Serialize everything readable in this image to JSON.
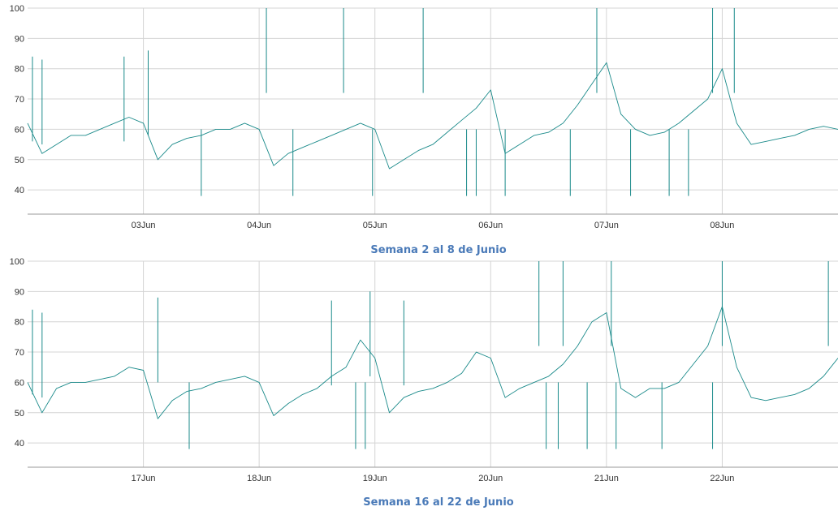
{
  "colors": {
    "series": "#1a8a8a",
    "title": "#4a7ab8",
    "grid": "#d4d4d4"
  },
  "chart_data": [
    {
      "type": "line",
      "title": "Semana 2 al  8 de Junio",
      "xlabel": "",
      "ylabel": "",
      "ylim": [
        32,
        100
      ],
      "x_range": [
        "2024-06-02T00:00",
        "2024-06-09T00:00"
      ],
      "x_ticks": [
        {
          "date": "2024-06-03T00:00",
          "label": "03Jun"
        },
        {
          "date": "2024-06-04T00:00",
          "label": "04Jun"
        },
        {
          "date": "2024-06-05T00:00",
          "label": "05Jun"
        },
        {
          "date": "2024-06-06T00:00",
          "label": "06Jun"
        },
        {
          "date": "2024-06-07T00:00",
          "label": "07Jun"
        },
        {
          "date": "2024-06-08T00:00",
          "label": "08Jun"
        }
      ],
      "y_ticks": [
        40,
        50,
        60,
        70,
        80,
        90,
        100
      ],
      "grid": true,
      "series": [
        {
          "x": [
            "2024-06-02T00:00",
            "2024-06-02T03:00",
            "2024-06-02T06:00",
            "2024-06-02T09:00",
            "2024-06-02T12:00",
            "2024-06-02T15:00",
            "2024-06-02T18:00",
            "2024-06-02T21:00",
            "2024-06-03T00:00",
            "2024-06-03T03:00",
            "2024-06-03T06:00",
            "2024-06-03T09:00",
            "2024-06-03T12:00",
            "2024-06-03T15:00",
            "2024-06-03T18:00",
            "2024-06-03T21:00",
            "2024-06-04T00:00",
            "2024-06-04T03:00",
            "2024-06-04T06:00",
            "2024-06-04T09:00",
            "2024-06-04T12:00",
            "2024-06-04T15:00",
            "2024-06-04T18:00",
            "2024-06-04T21:00",
            "2024-06-05T00:00",
            "2024-06-05T03:00",
            "2024-06-05T06:00",
            "2024-06-05T09:00",
            "2024-06-05T12:00",
            "2024-06-05T15:00",
            "2024-06-05T18:00",
            "2024-06-05T21:00",
            "2024-06-06T00:00",
            "2024-06-06T03:00",
            "2024-06-06T06:00",
            "2024-06-06T09:00",
            "2024-06-06T12:00",
            "2024-06-06T15:00",
            "2024-06-06T18:00",
            "2024-06-06T21:00",
            "2024-06-07T00:00",
            "2024-06-07T03:00",
            "2024-06-07T06:00",
            "2024-06-07T09:00",
            "2024-06-07T12:00",
            "2024-06-07T15:00",
            "2024-06-07T18:00",
            "2024-06-07T21:00",
            "2024-06-08T00:00",
            "2024-06-08T03:00",
            "2024-06-08T06:00",
            "2024-06-08T09:00",
            "2024-06-08T12:00",
            "2024-06-08T15:00",
            "2024-06-08T18:00",
            "2024-06-08T21:00",
            "2024-06-09T00:00"
          ],
          "values": [
            62,
            52,
            55,
            58,
            58,
            60,
            62,
            64,
            62,
            50,
            55,
            57,
            58,
            60,
            60,
            62,
            60,
            48,
            52,
            54,
            56,
            58,
            60,
            62,
            60,
            47,
            50,
            53,
            55,
            59,
            63,
            67,
            73,
            52,
            55,
            58,
            59,
            62,
            68,
            75,
            82,
            65,
            60,
            58,
            59,
            62,
            66,
            70,
            80,
            62,
            55,
            56,
            57,
            58,
            60,
            61,
            60
          ]
        }
      ],
      "spikes": [
        {
          "x": "2024-06-02T01:00",
          "y": 84
        },
        {
          "x": "2024-06-02T03:00",
          "y": 83
        },
        {
          "x": "2024-06-02T20:00",
          "y": 84
        },
        {
          "x": "2024-06-03T01:00",
          "y": 86
        },
        {
          "x": "2024-06-03T12:00",
          "y": 38
        },
        {
          "x": "2024-06-04T01:30",
          "y": 100
        },
        {
          "x": "2024-06-04T07:00",
          "y": 38
        },
        {
          "x": "2024-06-04T17:30",
          "y": 100
        },
        {
          "x": "2024-06-04T23:30",
          "y": 38
        },
        {
          "x": "2024-06-05T10:00",
          "y": 100
        },
        {
          "x": "2024-06-05T19:00",
          "y": 38
        },
        {
          "x": "2024-06-05T21:00",
          "y": 38
        },
        {
          "x": "2024-06-06T03:00",
          "y": 38
        },
        {
          "x": "2024-06-06T16:30",
          "y": 38
        },
        {
          "x": "2024-06-06T22:00",
          "y": 100
        },
        {
          "x": "2024-06-07T05:00",
          "y": 38
        },
        {
          "x": "2024-06-07T13:00",
          "y": 38
        },
        {
          "x": "2024-06-07T17:00",
          "y": 38
        },
        {
          "x": "2024-06-07T22:00",
          "y": 100
        },
        {
          "x": "2024-06-08T02:30",
          "y": 100
        }
      ]
    },
    {
      "type": "line",
      "title": "Semana  16 al 22 de Junio",
      "xlabel": "",
      "ylabel": "",
      "ylim": [
        32,
        100
      ],
      "x_range": [
        "2024-06-16T00:00",
        "2024-06-23T00:00"
      ],
      "x_ticks": [
        {
          "date": "2024-06-17T00:00",
          "label": "17Jun"
        },
        {
          "date": "2024-06-18T00:00",
          "label": "18Jun"
        },
        {
          "date": "2024-06-19T00:00",
          "label": "19Jun"
        },
        {
          "date": "2024-06-20T00:00",
          "label": "20Jun"
        },
        {
          "date": "2024-06-21T00:00",
          "label": "21Jun"
        },
        {
          "date": "2024-06-22T00:00",
          "label": "22Jun"
        }
      ],
      "y_ticks": [
        40,
        50,
        60,
        70,
        80,
        90,
        100
      ],
      "grid": true,
      "series": [
        {
          "x": [
            "2024-06-16T00:00",
            "2024-06-16T03:00",
            "2024-06-16T06:00",
            "2024-06-16T09:00",
            "2024-06-16T12:00",
            "2024-06-16T15:00",
            "2024-06-16T18:00",
            "2024-06-16T21:00",
            "2024-06-17T00:00",
            "2024-06-17T03:00",
            "2024-06-17T06:00",
            "2024-06-17T09:00",
            "2024-06-17T12:00",
            "2024-06-17T15:00",
            "2024-06-17T18:00",
            "2024-06-17T21:00",
            "2024-06-18T00:00",
            "2024-06-18T03:00",
            "2024-06-18T06:00",
            "2024-06-18T09:00",
            "2024-06-18T12:00",
            "2024-06-18T15:00",
            "2024-06-18T18:00",
            "2024-06-18T21:00",
            "2024-06-19T00:00",
            "2024-06-19T03:00",
            "2024-06-19T06:00",
            "2024-06-19T09:00",
            "2024-06-19T12:00",
            "2024-06-19T15:00",
            "2024-06-19T18:00",
            "2024-06-19T21:00",
            "2024-06-20T00:00",
            "2024-06-20T03:00",
            "2024-06-20T06:00",
            "2024-06-20T09:00",
            "2024-06-20T12:00",
            "2024-06-20T15:00",
            "2024-06-20T18:00",
            "2024-06-20T21:00",
            "2024-06-21T00:00",
            "2024-06-21T03:00",
            "2024-06-21T06:00",
            "2024-06-21T09:00",
            "2024-06-21T12:00",
            "2024-06-21T15:00",
            "2024-06-21T18:00",
            "2024-06-21T21:00",
            "2024-06-22T00:00",
            "2024-06-22T03:00",
            "2024-06-22T06:00",
            "2024-06-22T09:00",
            "2024-06-22T12:00",
            "2024-06-22T15:00",
            "2024-06-22T18:00",
            "2024-06-22T21:00",
            "2024-06-23T00:00"
          ],
          "values": [
            60,
            50,
            58,
            60,
            60,
            61,
            62,
            65,
            64,
            48,
            54,
            57,
            58,
            60,
            61,
            62,
            60,
            49,
            53,
            56,
            58,
            62,
            65,
            74,
            68,
            50,
            55,
            57,
            58,
            60,
            63,
            70,
            68,
            55,
            58,
            60,
            62,
            66,
            72,
            80,
            83,
            58,
            55,
            58,
            58,
            60,
            66,
            72,
            85,
            65,
            55,
            54,
            55,
            56,
            58,
            62,
            68
          ]
        }
      ],
      "spikes": [
        {
          "x": "2024-06-16T01:00",
          "y": 84
        },
        {
          "x": "2024-06-16T03:00",
          "y": 83
        },
        {
          "x": "2024-06-17T03:00",
          "y": 88
        },
        {
          "x": "2024-06-17T09:30",
          "y": 38
        },
        {
          "x": "2024-06-18T15:00",
          "y": 87
        },
        {
          "x": "2024-06-18T20:00",
          "y": 38
        },
        {
          "x": "2024-06-18T22:00",
          "y": 38
        },
        {
          "x": "2024-06-18T23:00",
          "y": 90
        },
        {
          "x": "2024-06-19T06:00",
          "y": 87
        },
        {
          "x": "2024-06-20T10:00",
          "y": 100
        },
        {
          "x": "2024-06-20T11:30",
          "y": 38
        },
        {
          "x": "2024-06-20T14:00",
          "y": 38
        },
        {
          "x": "2024-06-20T15:00",
          "y": 100
        },
        {
          "x": "2024-06-20T20:00",
          "y": 38
        },
        {
          "x": "2024-06-21T01:00",
          "y": 100
        },
        {
          "x": "2024-06-21T02:00",
          "y": 38
        },
        {
          "x": "2024-06-21T11:30",
          "y": 38
        },
        {
          "x": "2024-06-21T22:00",
          "y": 38
        },
        {
          "x": "2024-06-22T00:00",
          "y": 100
        },
        {
          "x": "2024-06-22T22:00",
          "y": 100
        }
      ]
    }
  ]
}
